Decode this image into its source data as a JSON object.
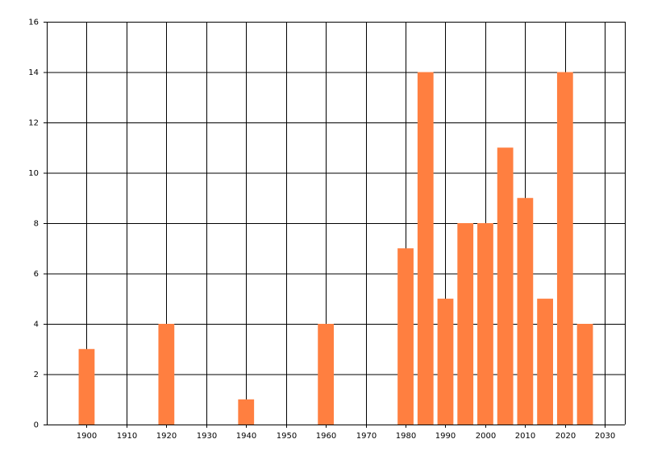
{
  "chart_data": {
    "type": "bar",
    "x": [
      1900,
      1920,
      1940,
      1960,
      1980,
      1985,
      1990,
      1995,
      2000,
      2005,
      2010,
      2015,
      2020,
      2025
    ],
    "values": [
      3,
      4,
      1,
      4,
      7,
      14,
      5,
      8,
      8,
      11,
      9,
      5,
      14,
      4
    ],
    "color": "#ff7f40",
    "xlim": [
      1890,
      2035
    ],
    "xticks": [
      1900,
      1910,
      1920,
      1930,
      1940,
      1950,
      1960,
      1970,
      1980,
      1990,
      2000,
      2010,
      2020,
      2030
    ],
    "ylim": [
      0,
      16
    ],
    "yticks": [
      0,
      2,
      4,
      6,
      8,
      10,
      12,
      14,
      16
    ],
    "grid": true
  }
}
